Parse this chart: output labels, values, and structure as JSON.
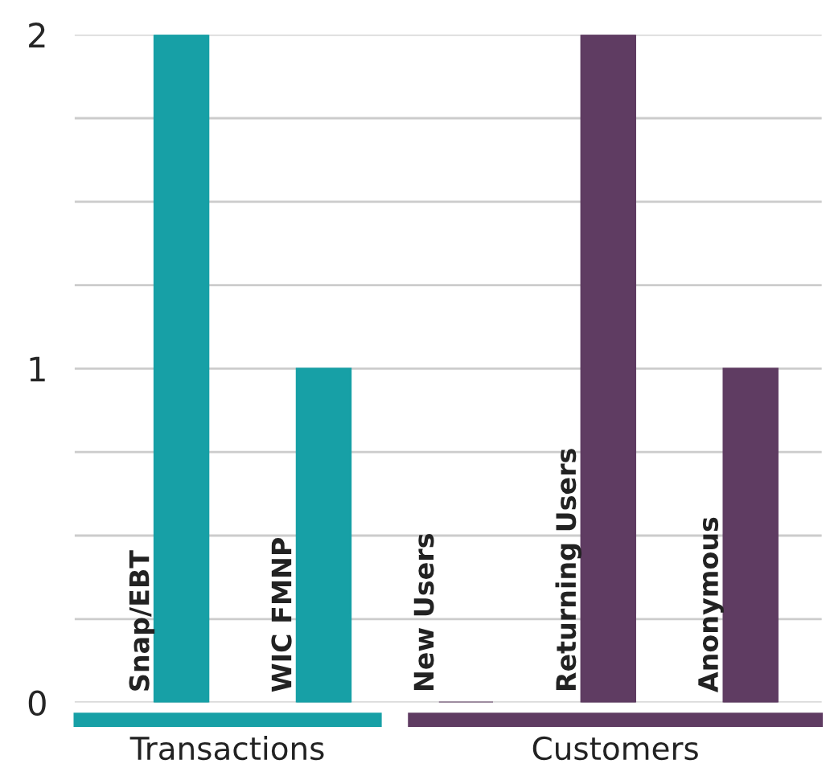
{
  "chart_data": {
    "type": "bar",
    "categories": [
      "Snap/EBT",
      "WIC FMNP",
      "New Users",
      "Returning Users",
      "Anonymous"
    ],
    "values": [
      2,
      1,
      0,
      2,
      1
    ],
    "colors": [
      "#17a0a6",
      "#17a0a6",
      "#5f3c62",
      "#5f3c62",
      "#5f3c62"
    ],
    "ylim": [
      0,
      2
    ],
    "yticks": [
      0,
      {
        "value": 0.25,
        "label": null
      },
      {
        "value": 0.5,
        "label": null
      },
      {
        "value": 0.75,
        "label": null
      },
      1,
      {
        "value": 1.25,
        "label": null
      },
      {
        "value": 1.5,
        "label": null
      },
      {
        "value": 1.75,
        "label": null
      },
      2
    ],
    "grid": "y",
    "annotations": [
      "Transactions",
      "Customers"
    ]
  }
}
